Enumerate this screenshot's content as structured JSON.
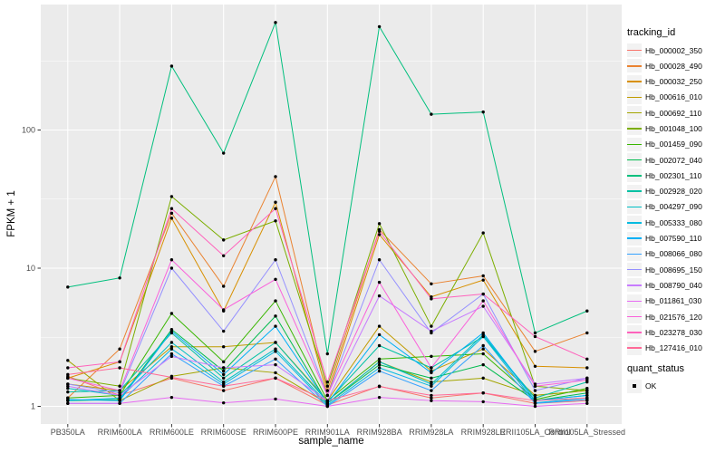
{
  "chart_data": {
    "type": "line",
    "title": "",
    "xlabel": "sample_name",
    "ylabel": "FPKM + 1",
    "x_categories": [
      "PB350LA",
      "RRIM600LA",
      "RRIM600LE",
      "RRIM600SE",
      "RRIM600PE",
      "RRIM901LA",
      "RRIM928BA",
      "RRIM928LA",
      "RRIM928LE",
      "RRII105LA_Control",
      "RRII105LA_Stressed"
    ],
    "y_scale": "log10",
    "y_ticks": [
      1,
      10,
      100
    ],
    "y_minor": [
      3.162,
      31.62,
      316.2
    ],
    "ylim": [
      1,
      800
    ],
    "grid": "white major and minor gridlines on gray panel",
    "legend_position": "right",
    "legend": {
      "tracking_title": "tracking_id",
      "quant_title": "quant_status",
      "quant_value": "OK"
    },
    "points": {
      "shape": "filled-circle",
      "color": "#000000",
      "radius": 1.7
    },
    "colors": {
      "panel_bg": "#EBEBEB",
      "grid": "#FFFFFF",
      "tick_mark": "#333333",
      "tick_text": "#4D4D4D",
      "key_bg": "#F2F2F2"
    },
    "series": [
      {
        "name": "Hb_000002_350",
        "color": "#F8766D",
        "values": [
          1.65,
          1.2,
          1.6,
          1.3,
          1.6,
          1.02,
          1.4,
          1.15,
          1.25,
          1.05,
          1.1
        ]
      },
      {
        "name": "Hb_000028_490",
        "color": "#EA8331",
        "values": [
          1.15,
          2.6,
          25,
          7.4,
          46,
          1.3,
          19,
          7.7,
          8.8,
          2.5,
          3.4
        ]
      },
      {
        "name": "Hb_000032_250",
        "color": "#D89000",
        "values": [
          1.6,
          2.1,
          23,
          4.9,
          30,
          1.2,
          17.5,
          6.2,
          8.2,
          1.95,
          1.9
        ]
      },
      {
        "name": "Hb_000616_010",
        "color": "#C09B00",
        "values": [
          1.45,
          1.3,
          2.7,
          2.7,
          2.9,
          1.1,
          3.8,
          1.8,
          2.6,
          1.2,
          1.3
        ]
      },
      {
        "name": "Hb_000692_110",
        "color": "#A3A500",
        "values": [
          2.15,
          1.1,
          1.65,
          1.9,
          1.75,
          1.05,
          2.1,
          1.5,
          1.6,
          1.2,
          1.3
        ]
      },
      {
        "name": "Hb_001048_100",
        "color": "#7CAE00",
        "values": [
          1.6,
          1.4,
          33,
          16,
          22,
          1.4,
          21,
          3.8,
          18,
          1.4,
          1.3
        ]
      },
      {
        "name": "Hb_001459_090",
        "color": "#39B600",
        "values": [
          1.15,
          1.2,
          4.7,
          2.1,
          5.8,
          1.1,
          2.2,
          2.3,
          2.4,
          1.12,
          1.35
        ]
      },
      {
        "name": "Hb_002072_040",
        "color": "#00BB4E",
        "values": [
          1.1,
          1.12,
          3.6,
          1.8,
          4.5,
          1.05,
          2.0,
          1.6,
          2.0,
          1.1,
          1.25
        ]
      },
      {
        "name": "Hb_002301_110",
        "color": "#00BF7D",
        "values": [
          7.3,
          8.5,
          290,
          68,
          600,
          2.4,
          560,
          130,
          135,
          3.4,
          4.9
        ]
      },
      {
        "name": "Hb_002928_020",
        "color": "#00C1A3",
        "values": [
          1.27,
          1.3,
          3.4,
          1.6,
          2.9,
          1.08,
          2.75,
          1.9,
          3.2,
          1.15,
          1.5
        ]
      },
      {
        "name": "Hb_004297_090",
        "color": "#00BFC4",
        "values": [
          1.35,
          1.2,
          2.9,
          1.5,
          2.6,
          1.05,
          2.1,
          1.45,
          3.3,
          1.1,
          1.2
        ]
      },
      {
        "name": "Hb_005333_080",
        "color": "#00BAE0",
        "values": [
          1.1,
          1.15,
          2.6,
          1.45,
          2.5,
          1.02,
          1.9,
          1.4,
          3.2,
          1.06,
          1.15
        ]
      },
      {
        "name": "Hb_007590_110",
        "color": "#00B0F6",
        "values": [
          1.12,
          1.1,
          3.5,
          1.7,
          3.8,
          1.05,
          3.3,
          1.75,
          3.4,
          1.1,
          1.2
        ]
      },
      {
        "name": "Hb_008066_080",
        "color": "#35A2FF",
        "values": [
          1.05,
          1.05,
          2.4,
          1.4,
          2.2,
          1.0,
          1.8,
          1.3,
          2.75,
          1.05,
          1.12
        ]
      },
      {
        "name": "Hb_008695_150",
        "color": "#9590FF",
        "values": [
          1.45,
          1.25,
          10,
          3.5,
          11.5,
          1.2,
          11.5,
          3.4,
          6.5,
          1.3,
          1.6
        ]
      },
      {
        "name": "Hb_008790_040",
        "color": "#C77CFF",
        "values": [
          1.4,
          1.2,
          2.3,
          1.9,
          2.0,
          1.1,
          6.3,
          3.5,
          5.3,
          1.45,
          1.6
        ]
      },
      {
        "name": "Hb_011861_030",
        "color": "#E76BF3",
        "values": [
          1.05,
          1.05,
          1.16,
          1.06,
          1.13,
          1.0,
          1.16,
          1.1,
          1.08,
          1.0,
          1.05
        ]
      },
      {
        "name": "Hb_021576_120",
        "color": "#FA62DB",
        "values": [
          1.6,
          1.3,
          11.5,
          5.0,
          8.3,
          1.2,
          7.9,
          1.9,
          5.8,
          1.4,
          1.55
        ]
      },
      {
        "name": "Hb_023278_030",
        "color": "#FF62BC",
        "values": [
          1.9,
          2.1,
          27,
          12.3,
          27,
          1.5,
          18.5,
          6.0,
          6.5,
          3.2,
          2.2
        ]
      },
      {
        "name": "Hb_127416_010",
        "color": "#FF6A98",
        "values": [
          1.7,
          1.9,
          1.62,
          1.4,
          1.6,
          1.1,
          1.39,
          1.2,
          1.25,
          1.1,
          1.15
        ]
      }
    ]
  }
}
